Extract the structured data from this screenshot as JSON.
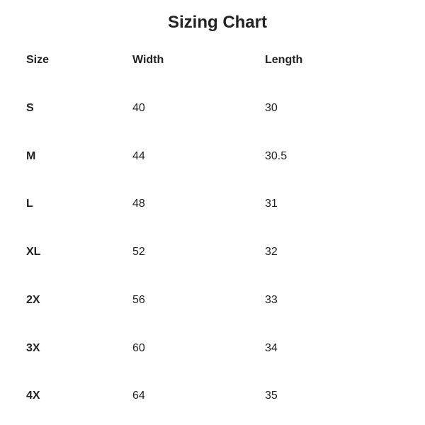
{
  "title": "Sizing Chart",
  "headers": [
    "Size",
    "Width",
    "Length"
  ],
  "rows": [
    [
      "S",
      "40",
      "30"
    ],
    [
      "M",
      "44",
      "30.5"
    ],
    [
      "L",
      "48",
      "31"
    ],
    [
      "XL",
      "52",
      "32"
    ],
    [
      "2X",
      "56",
      "33"
    ],
    [
      "3X",
      "60",
      "34"
    ],
    [
      "4X",
      "64",
      "35"
    ]
  ]
}
